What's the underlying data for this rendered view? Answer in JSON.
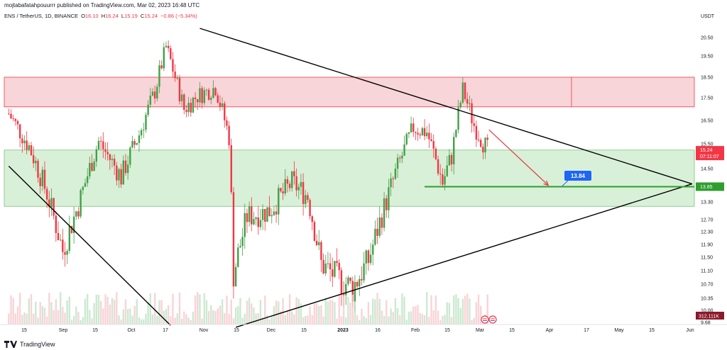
{
  "header": {
    "publisher_line": "mojtabafatahpouurrr published on TradingView.com, Mar 02, 2023 16:48 UTC",
    "symbol": "ENS / TetherUS, 1D, BINANCE",
    "ohlc": [
      {
        "label": "O",
        "value": "16.10"
      },
      {
        "label": "H",
        "value": "16.24"
      },
      {
        "label": "L",
        "value": "15.19"
      },
      {
        "label": "C",
        "value": "15.24"
      }
    ],
    "change": "−0.86 (−5.34%)"
  },
  "footer": {
    "brand": "TradingView"
  },
  "colors": {
    "up": "#26a69a",
    "up_candle": "#43a047",
    "down": "#f23645",
    "red_zone": "#f7d5d8",
    "green_zone": "#d8f0d8",
    "trendline": "#000000",
    "support": "#2e9e2e",
    "arrow": "#e53945",
    "label_blue": "#1e66f5"
  },
  "chart_data": {
    "type": "candlestick",
    "title": "ENS / TetherUS, 1D, BINANCE",
    "currency": "USDT",
    "y_ticks": [
      "20.50",
      "19.50",
      "18.50",
      "17.50",
      "16.50",
      "15.50",
      "14.50",
      "13.30",
      "12.70",
      "12.30",
      "11.90",
      "11.50",
      "11.10",
      "10.70",
      "10.35",
      "10.00",
      "9.68"
    ],
    "x_ticks": [
      "15",
      "Sep",
      "15",
      "Oct",
      "17",
      "Nov",
      "15",
      "Dec",
      "15",
      "2023",
      "16",
      "Feb",
      "15",
      "Mar",
      "15",
      "Apr",
      "17",
      "May",
      "15",
      "Jun"
    ],
    "last_price_label": "15.24",
    "countdown_label": "07:11:07",
    "level_label": "13.85",
    "volume_label": "312.111K",
    "annotation_label": "13.84",
    "zones": [
      {
        "name": "resistance",
        "from": 17.1,
        "to": 18.5
      },
      {
        "name": "support",
        "from": 13.15,
        "to": 15.25
      }
    ],
    "horizontal_level": 13.85,
    "price_series": [
      [
        "2022-08-01",
        16.8
      ],
      [
        "2022-08-10",
        15.4
      ],
      [
        "2022-08-18",
        13.6
      ],
      [
        "2022-08-25",
        11.7
      ],
      [
        "2022-09-01",
        13.2
      ],
      [
        "2022-09-10",
        15.6
      ],
      [
        "2022-09-20",
        14.2
      ],
      [
        "2022-09-28",
        15.9
      ],
      [
        "2022-10-05",
        17.8
      ],
      [
        "2022-10-10",
        20.0
      ],
      [
        "2022-10-18",
        17.0
      ],
      [
        "2022-10-24",
        17.6
      ],
      [
        "2022-11-01",
        18.0
      ],
      [
        "2022-11-07",
        15.8
      ],
      [
        "2022-11-09",
        11.0
      ],
      [
        "2022-11-15",
        12.8
      ],
      [
        "2022-11-25",
        13.0
      ],
      [
        "2022-12-05",
        14.0
      ],
      [
        "2022-12-12",
        13.5
      ],
      [
        "2022-12-18",
        11.3
      ],
      [
        "2022-12-25",
        10.9
      ],
      [
        "2023-01-01",
        10.6
      ],
      [
        "2023-01-08",
        11.4
      ],
      [
        "2023-01-15",
        13.1
      ],
      [
        "2023-01-22",
        14.8
      ],
      [
        "2023-01-28",
        16.2
      ],
      [
        "2023-02-03",
        16.0
      ],
      [
        "2023-02-10",
        14.0
      ],
      [
        "2023-02-14",
        15.0
      ],
      [
        "2023-02-19",
        17.9
      ],
      [
        "2023-02-24",
        16.3
      ],
      [
        "2023-03-02",
        15.24
      ]
    ],
    "trendlines": [
      {
        "name": "descending-resistance",
        "from": [
          "2022-10-25",
          21.0
        ],
        "to": [
          "2023-06-01",
          13.95
        ]
      },
      {
        "name": "ascending-support",
        "from": [
          "2022-11-10",
          9.55
        ],
        "to": [
          "2023-06-01",
          13.95
        ]
      },
      {
        "name": "left-descending",
        "from": [
          "2022-08-01",
          14.6
        ],
        "to": [
          "2022-10-12",
          9.6
        ]
      }
    ],
    "projection": {
      "from": [
        "2023-03-02",
        16.1
      ],
      "to": [
        "2023-03-29",
        13.9
      ]
    }
  }
}
